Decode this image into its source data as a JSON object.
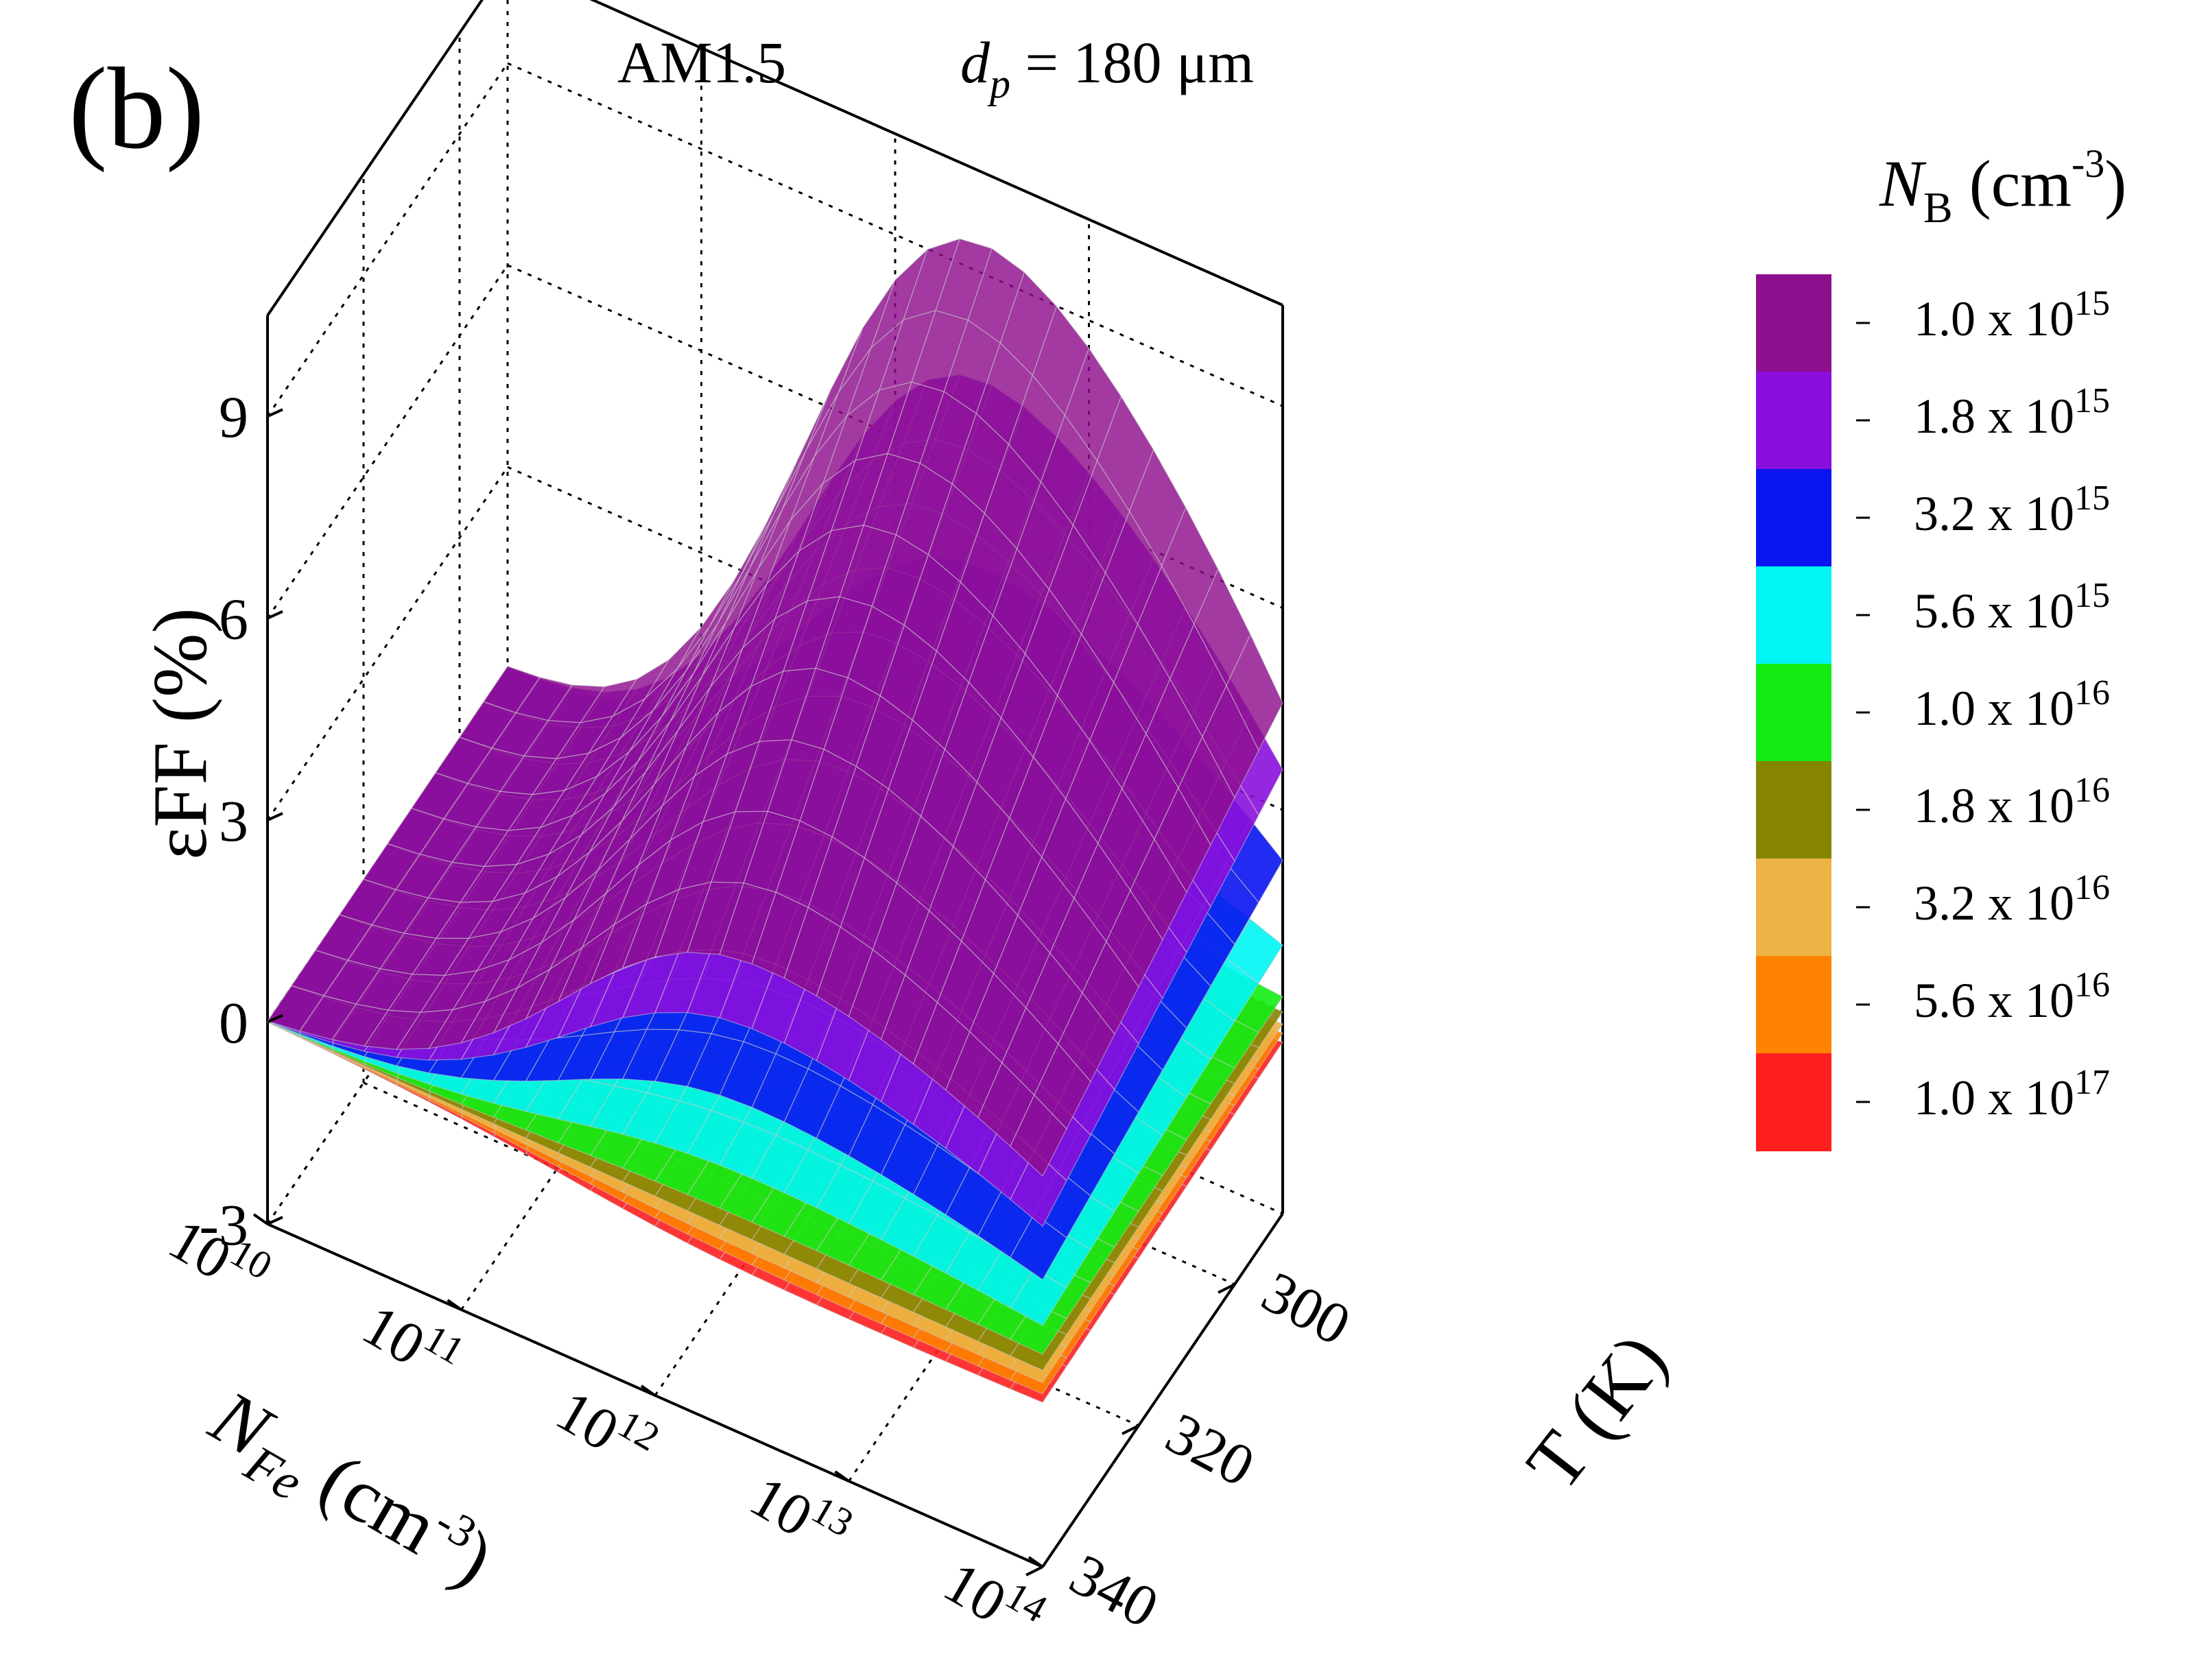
{
  "panel_label": "(b)",
  "title": {
    "spectrum": "AM1.5",
    "thickness_symbol": "d",
    "thickness_subscript": "p",
    "thickness_value": " = 180 μm"
  },
  "chart_data": {
    "type": "surface3d",
    "zlabel": {
      "text": "εFF (%)"
    },
    "xlabel": {
      "symbol": "N",
      "subscript": "Fe",
      "unit": " (cm",
      "exp": "-3",
      "close": ")"
    },
    "ylabel": {
      "text": "T (K)"
    },
    "z_ticks": [
      "9",
      "6",
      "3",
      "0",
      "-3"
    ],
    "z_range": [
      -3,
      10.5
    ],
    "x_ticks": [
      {
        "base": "10",
        "exp": "10"
      },
      {
        "base": "10",
        "exp": "11"
      },
      {
        "base": "10",
        "exp": "12"
      },
      {
        "base": "10",
        "exp": "13"
      },
      {
        "base": "10",
        "exp": "14"
      }
    ],
    "x_scale": "log",
    "x_range": [
      10000000000.0,
      100000000000000.0
    ],
    "y_ticks": [
      "300",
      "320",
      "340"
    ],
    "y_range": [
      290,
      340
    ],
    "grid": true,
    "legend": {
      "position": "right",
      "title": {
        "symbol": "N",
        "subscript": "B",
        "unit": " (cm",
        "exp": "-3",
        "close": ")"
      },
      "entries": [
        {
          "mantissa": "1.0 x 10",
          "exp": "15",
          "color": "#8e0f8e"
        },
        {
          "mantissa": "1.8 x 10",
          "exp": "15",
          "color": "#8a0fdc"
        },
        {
          "mantissa": "3.2 x 10",
          "exp": "15",
          "color": "#0a14f0"
        },
        {
          "mantissa": "5.6 x 10",
          "exp": "15",
          "color": "#00f5f5"
        },
        {
          "mantissa": "1.0 x 10",
          "exp": "16",
          "color": "#14ec14"
        },
        {
          "mantissa": "1.8 x 10",
          "exp": "16",
          "color": "#858502"
        },
        {
          "mantissa": "3.2 x 10",
          "exp": "16",
          "color": "#ecb445"
        },
        {
          "mantissa": "5.6 x 10",
          "exp": "16",
          "color": "#ff8200"
        },
        {
          "mantissa": "1.0 x 10",
          "exp": "17",
          "color": "#ff1e1e"
        }
      ]
    },
    "series": [
      {
        "name": "1.0 x 10^15",
        "color": "#8e0f8e",
        "peak_efff": 10.2,
        "efff_low_nfe": 0,
        "efff_high_nfe_300K": 3.0
      },
      {
        "name": "1.8 x 10^15",
        "color": "#8a0fdc",
        "peak_efff": 8.0,
        "efff_low_nfe": 0,
        "efff_high_nfe_300K": 2.0
      },
      {
        "name": "3.2 x 10^15",
        "color": "#0a14f0",
        "peak_efff": 5.0,
        "efff_low_nfe": 0,
        "efff_high_nfe_300K": 1.2
      },
      {
        "name": "5.6 x 10^15",
        "color": "#00f5f5",
        "peak_efff": 2.2,
        "efff_low_nfe": 0,
        "efff_high_nfe_300K": 0.6
      },
      {
        "name": "1.0 x 10^16",
        "color": "#14ec14",
        "peak_efff": 0.5,
        "efff_low_nfe": 0,
        "efff_high_nfe_300K": 0.2
      },
      {
        "name": "1.8 x 10^16",
        "color": "#858502",
        "peak_efff": 0.0,
        "efff_low_nfe": 0,
        "efff_high_nfe_300K": -0.2
      },
      {
        "name": "3.2 x 10^16",
        "color": "#ecb445",
        "peak_efff": -0.4,
        "efff_low_nfe": 0,
        "efff_high_nfe_300K": -0.5
      },
      {
        "name": "5.6 x 10^16",
        "color": "#ff8200",
        "peak_efff": -0.7,
        "efff_low_nfe": 0,
        "efff_high_nfe_300K": -0.8
      },
      {
        "name": "1.0 x 10^17",
        "color": "#ff1e1e",
        "peak_efff": -1.0,
        "efff_low_nfe": 0,
        "efff_high_nfe_300K": -1.0
      }
    ]
  }
}
